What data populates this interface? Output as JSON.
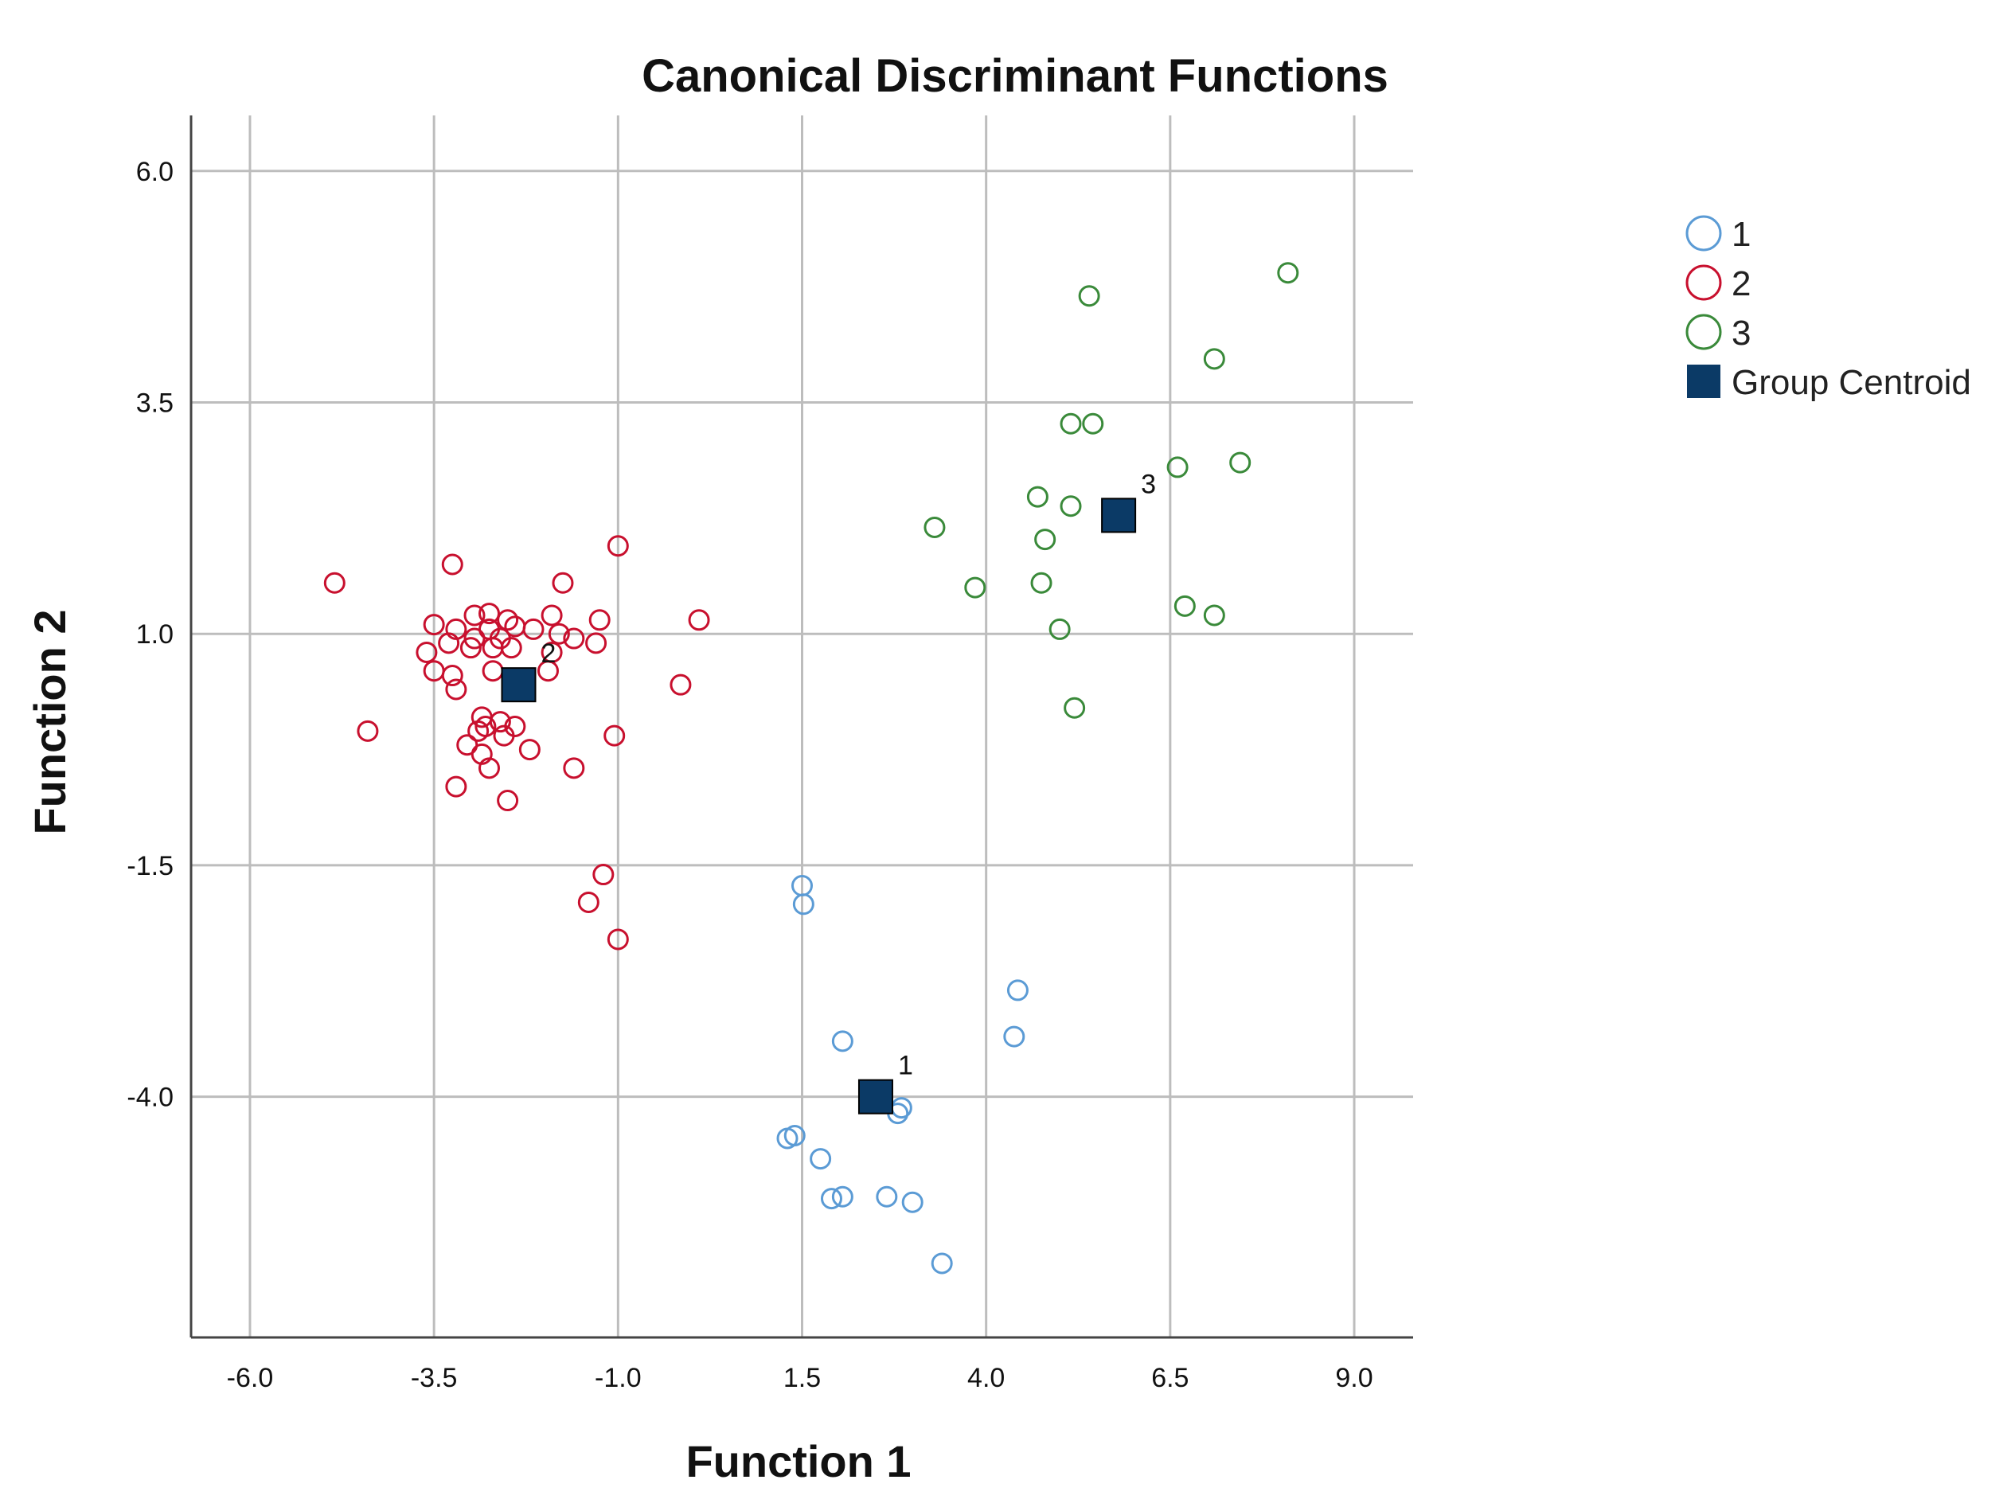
{
  "chart_data": {
    "type": "scatter",
    "title": "Canonical Discriminant Functions",
    "xlabel": "Function 1",
    "ylabel": "Function 2",
    "xlim": [
      -6.8,
      9.8
    ],
    "ylim": [
      -6.6,
      6.6
    ],
    "xticks": [
      -6.0,
      -3.5,
      -1.0,
      1.5,
      4.0,
      6.5,
      9.0
    ],
    "xtick_labels": [
      "-6.0",
      "-3.5",
      "-1.0",
      "1.5",
      "4.0",
      "6.5",
      "9.0"
    ],
    "yticks": [
      6.0,
      3.5,
      1.0,
      -1.5,
      -4.0
    ],
    "ytick_labels": [
      "6.0",
      "3.5",
      "1.0",
      "-1.5",
      "-4.0"
    ],
    "grid": true,
    "legend_position": "top-right",
    "series": [
      {
        "name": "1",
        "color": "#5b9bd5",
        "marker": "open-circle",
        "points": [
          [
            1.5,
            -1.72
          ],
          [
            1.52,
            -1.92
          ],
          [
            2.05,
            -3.4
          ],
          [
            1.3,
            -4.45
          ],
          [
            4.43,
            -2.85
          ],
          [
            4.38,
            -3.35
          ],
          [
            2.85,
            -4.12
          ],
          [
            2.8,
            -4.18
          ],
          [
            1.4,
            -4.42
          ],
          [
            1.75,
            -4.67
          ],
          [
            1.9,
            -5.1
          ],
          [
            2.05,
            -5.08
          ],
          [
            2.65,
            -5.08
          ],
          [
            3.0,
            -5.14
          ],
          [
            3.4,
            -5.8
          ]
        ]
      },
      {
        "name": "2",
        "color": "#c8102e",
        "marker": "open-circle",
        "points": [
          [
            -4.85,
            1.55
          ],
          [
            -4.4,
            -0.05
          ],
          [
            -3.25,
            1.75
          ],
          [
            -3.5,
            1.1
          ],
          [
            -3.2,
            1.05
          ],
          [
            -3.6,
            0.8
          ],
          [
            -3.3,
            0.9
          ],
          [
            -3.5,
            0.6
          ],
          [
            -3.25,
            0.55
          ],
          [
            -3.2,
            0.4
          ],
          [
            -2.95,
            1.2
          ],
          [
            -2.75,
            1.22
          ],
          [
            -2.5,
            1.15
          ],
          [
            -2.75,
            1.05
          ],
          [
            -2.4,
            1.08
          ],
          [
            -2.15,
            1.05
          ],
          [
            -1.9,
            1.2
          ],
          [
            -1.75,
            1.55
          ],
          [
            -1.0,
            1.95
          ],
          [
            -1.25,
            1.15
          ],
          [
            -1.8,
            1.0
          ],
          [
            -1.6,
            0.95
          ],
          [
            -1.3,
            0.9
          ],
          [
            -2.95,
            0.95
          ],
          [
            -2.6,
            0.95
          ],
          [
            -3.0,
            0.85
          ],
          [
            -2.7,
            0.85
          ],
          [
            -2.45,
            0.85
          ],
          [
            -1.9,
            0.8
          ],
          [
            -1.95,
            0.6
          ],
          [
            -2.7,
            0.6
          ],
          [
            -2.35,
            0.4
          ],
          [
            -2.85,
            0.1
          ],
          [
            -2.6,
            0.05
          ],
          [
            -2.4,
            0.0
          ],
          [
            -2.9,
            -0.05
          ],
          [
            -2.8,
            0.0
          ],
          [
            -2.55,
            -0.1
          ],
          [
            -3.05,
            -0.2
          ],
          [
            -2.85,
            -0.3
          ],
          [
            -2.2,
            -0.25
          ],
          [
            -1.6,
            -0.45
          ],
          [
            -2.75,
            -0.45
          ],
          [
            -3.2,
            -0.65
          ],
          [
            -2.5,
            -0.8
          ],
          [
            -1.05,
            -0.1
          ],
          [
            0.1,
            1.15
          ],
          [
            -0.15,
            0.45
          ],
          [
            -1.2,
            -1.6
          ],
          [
            -1.4,
            -1.9
          ],
          [
            -1.0,
            -2.3
          ]
        ]
      },
      {
        "name": "3",
        "color": "#3a8a3a",
        "marker": "open-circle",
        "points": [
          [
            8.1,
            4.9
          ],
          [
            5.4,
            4.65
          ],
          [
            7.1,
            3.97
          ],
          [
            5.15,
            3.27
          ],
          [
            5.45,
            3.27
          ],
          [
            6.6,
            2.8
          ],
          [
            7.45,
            2.85
          ],
          [
            4.7,
            2.48
          ],
          [
            5.15,
            2.38
          ],
          [
            3.3,
            2.15
          ],
          [
            4.8,
            2.02
          ],
          [
            3.85,
            1.5
          ],
          [
            4.75,
            1.55
          ],
          [
            5.0,
            1.05
          ],
          [
            6.7,
            1.3
          ],
          [
            7.1,
            1.2
          ],
          [
            5.2,
            0.2
          ]
        ]
      }
    ],
    "centroids": [
      {
        "label": "1",
        "x": 2.5,
        "y": -4.0
      },
      {
        "label": "2",
        "x": -2.35,
        "y": 0.45
      },
      {
        "label": "3",
        "x": 5.8,
        "y": 2.28
      }
    ],
    "centroid_color": "#0b3a66",
    "legend": [
      {
        "label": "1",
        "color": "#5b9bd5",
        "marker": "open-circle"
      },
      {
        "label": "2",
        "color": "#c8102e",
        "marker": "open-circle"
      },
      {
        "label": "3",
        "color": "#3a8a3a",
        "marker": "open-circle"
      },
      {
        "label": "Group Centroid",
        "color": "#0b3a66",
        "marker": "square"
      }
    ]
  }
}
